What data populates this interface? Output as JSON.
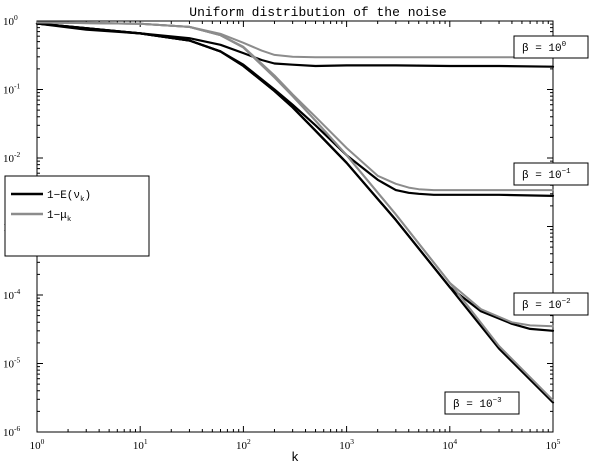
{
  "chart_data": {
    "type": "line",
    "title": "Uniform distribution of the noise",
    "xlabel": "k",
    "ylabel": "",
    "xscale": "log",
    "yscale": "log",
    "xlim": [
      1,
      100000
    ],
    "ylim": [
      1e-06,
      1
    ],
    "grid": false,
    "legend_position": "middle-left",
    "x_ticks": [
      {
        "base": "10",
        "exp": "0"
      },
      {
        "base": "10",
        "exp": "1"
      },
      {
        "base": "10",
        "exp": "2"
      },
      {
        "base": "10",
        "exp": "3"
      },
      {
        "base": "10",
        "exp": "4"
      },
      {
        "base": "10",
        "exp": "5"
      }
    ],
    "y_ticks": [
      {
        "base": "10",
        "exp": "0"
      },
      {
        "base": "10",
        "exp": "-1"
      },
      {
        "base": "10",
        "exp": "-2"
      },
      {
        "base": "10",
        "exp": "-3"
      },
      {
        "base": "10",
        "exp": "-4"
      },
      {
        "base": "10",
        "exp": "-5"
      },
      {
        "base": "10",
        "exp": "-6"
      }
    ],
    "legend": [
      {
        "label_main": "1−E(ν",
        "label_sub": "k",
        "label_end": ")",
        "color": "#000000"
      },
      {
        "label_main": "1−μ",
        "label_sub": "k",
        "label_end": "",
        "color": "#8c8c8c"
      }
    ],
    "series": [
      {
        "curve": "β = 10^0 : 1−E(ν_k)",
        "color": "#000000",
        "x": [
          1,
          3,
          10,
          30,
          60,
          100,
          150,
          200,
          300,
          500,
          1000,
          3000,
          10000,
          30000,
          100000
        ],
        "y": [
          0.92,
          0.75,
          0.66,
          0.56,
          0.45,
          0.34,
          0.27,
          0.24,
          0.23,
          0.22,
          0.225,
          0.225,
          0.22,
          0.22,
          0.215
        ]
      },
      {
        "curve": "β = 10^0 : 1−μ_k",
        "color": "#8c8c8c",
        "x": [
          1,
          3,
          10,
          30,
          60,
          100,
          150,
          200,
          300,
          500,
          1000,
          3000,
          10000,
          30000,
          100000
        ],
        "y": [
          0.95,
          0.94,
          0.91,
          0.82,
          0.65,
          0.48,
          0.37,
          0.32,
          0.3,
          0.295,
          0.295,
          0.295,
          0.295,
          0.295,
          0.295
        ]
      },
      {
        "curve": "β = 10^-1 : 1−E(ν_k)",
        "color": "#000000",
        "x": [
          1,
          10,
          30,
          60,
          100,
          200,
          300,
          500,
          1000,
          2000,
          3000,
          4000,
          5000,
          7000,
          10000,
          30000,
          100000
        ],
        "y": [
          0.92,
          0.66,
          0.52,
          0.36,
          0.23,
          0.1,
          0.06,
          0.03,
          0.011,
          0.0048,
          0.0034,
          0.0031,
          0.003,
          0.0029,
          0.0029,
          0.0029,
          0.0028
        ]
      },
      {
        "curve": "β = 10^-1 : 1−μ_k",
        "color": "#8c8c8c",
        "x": [
          1,
          10,
          30,
          60,
          100,
          200,
          300,
          500,
          1000,
          2000,
          3000,
          4000,
          5000,
          7000,
          10000,
          30000,
          100000
        ],
        "y": [
          0.95,
          0.91,
          0.82,
          0.62,
          0.42,
          0.16,
          0.085,
          0.04,
          0.014,
          0.0055,
          0.0042,
          0.0037,
          0.0035,
          0.0034,
          0.0034,
          0.0034,
          0.0034
        ]
      },
      {
        "curve": "β = 10^-2 : 1−E(ν_k)",
        "color": "#000000",
        "x": [
          1,
          10,
          30,
          60,
          100,
          200,
          300,
          500,
          1000,
          3000,
          10000,
          20000,
          40000,
          60000,
          100000
        ],
        "y": [
          0.92,
          0.66,
          0.52,
          0.36,
          0.22,
          0.095,
          0.055,
          0.025,
          0.0085,
          0.00125,
          0.00013,
          5.8e-05,
          3.8e-05,
          3.2e-05,
          3e-05
        ]
      },
      {
        "curve": "β = 10^-2 : 1−μ_k",
        "color": "#8c8c8c",
        "x": [
          1,
          10,
          30,
          60,
          100,
          200,
          300,
          500,
          1000,
          3000,
          10000,
          20000,
          40000,
          60000,
          100000
        ],
        "y": [
          0.95,
          0.91,
          0.82,
          0.62,
          0.41,
          0.15,
          0.08,
          0.035,
          0.011,
          0.0015,
          0.00015,
          6.2e-05,
          4e-05,
          3.6e-05,
          3.5e-05
        ]
      },
      {
        "curve": "β = 10^-3 : 1−E(ν_k)",
        "color": "#000000",
        "x": [
          1,
          10,
          30,
          60,
          100,
          200,
          300,
          500,
          1000,
          3000,
          10000,
          30000,
          100000
        ],
        "y": [
          0.92,
          0.66,
          0.52,
          0.36,
          0.22,
          0.095,
          0.055,
          0.025,
          0.0085,
          0.00125,
          0.00013,
          1.65e-05,
          2.7e-06
        ]
      },
      {
        "curve": "β = 10^-3 : 1−μ_k",
        "color": "#8c8c8c",
        "x": [
          1,
          10,
          30,
          60,
          100,
          200,
          300,
          500,
          1000,
          3000,
          10000,
          30000,
          100000
        ],
        "y": [
          0.95,
          0.91,
          0.82,
          0.62,
          0.41,
          0.15,
          0.08,
          0.035,
          0.011,
          0.0015,
          0.00015,
          1.8e-05,
          2.9e-06
        ]
      }
    ],
    "annotations": [
      {
        "text_main": "β = 10",
        "text_exp": "0",
        "x": 100000,
        "y": 0.295
      },
      {
        "text_main": "β = 10",
        "text_exp": "−1",
        "x": 100000,
        "y": 0.0034
      },
      {
        "text_main": "β = 10",
        "text_exp": "−2",
        "x": 100000,
        "y": 3.5e-05
      },
      {
        "text_main": "β = 10",
        "text_exp": "−3",
        "x": 100000,
        "y": 2.7e-06
      }
    ]
  }
}
